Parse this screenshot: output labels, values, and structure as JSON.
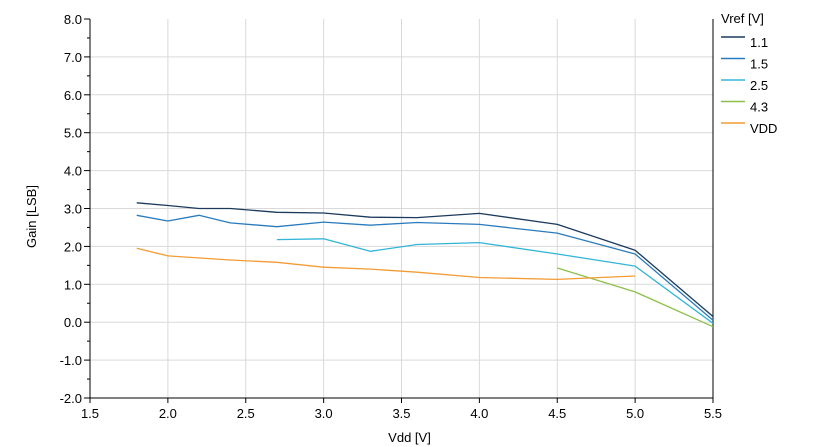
{
  "chart_data": {
    "type": "line",
    "xlabel": "Vdd [V]",
    "ylabel": "Gain [LSB]",
    "xlim": [
      1.5,
      5.5
    ],
    "ylim": [
      -2.0,
      8.0
    ],
    "xticks": [
      "1.5",
      "2.0",
      "2.5",
      "3.0",
      "3.5",
      "4.0",
      "4.5",
      "5.0",
      "5.5"
    ],
    "yticks": [
      "-2.0",
      "-1.0",
      "0.0",
      "1.0",
      "2.0",
      "3.0",
      "4.0",
      "5.0",
      "6.0",
      "7.0",
      "8.0"
    ],
    "grid": true,
    "legend_title": "Vref [V]",
    "legend_position": "right",
    "series": [
      {
        "name": "1.1",
        "color": "#1b3a5c",
        "points": [
          [
            1.8,
            3.15
          ],
          [
            2.0,
            3.08
          ],
          [
            2.2,
            3.0
          ],
          [
            2.4,
            3.0
          ],
          [
            2.7,
            2.9
          ],
          [
            3.0,
            2.88
          ],
          [
            3.3,
            2.77
          ],
          [
            3.6,
            2.76
          ],
          [
            4.0,
            2.87
          ],
          [
            4.5,
            2.58
          ],
          [
            5.0,
            1.9
          ],
          [
            5.5,
            0.15
          ]
        ]
      },
      {
        "name": "1.5",
        "color": "#2a7bbd",
        "points": [
          [
            1.8,
            2.82
          ],
          [
            2.0,
            2.67
          ],
          [
            2.2,
            2.82
          ],
          [
            2.4,
            2.62
          ],
          [
            2.7,
            2.52
          ],
          [
            3.0,
            2.64
          ],
          [
            3.3,
            2.56
          ],
          [
            3.6,
            2.63
          ],
          [
            4.0,
            2.58
          ],
          [
            4.5,
            2.35
          ],
          [
            5.0,
            1.8
          ],
          [
            5.5,
            0.05
          ]
        ]
      },
      {
        "name": "2.5",
        "color": "#33b5d8",
        "points": [
          [
            2.7,
            2.18
          ],
          [
            3.0,
            2.2
          ],
          [
            3.3,
            1.87
          ],
          [
            3.6,
            2.05
          ],
          [
            4.0,
            2.1
          ],
          [
            4.5,
            1.8
          ],
          [
            5.0,
            1.48
          ],
          [
            5.5,
            -0.03
          ]
        ]
      },
      {
        "name": "4.3",
        "color": "#8cc04b",
        "points": [
          [
            4.5,
            1.43
          ],
          [
            5.0,
            0.8
          ],
          [
            5.5,
            -0.12
          ]
        ]
      },
      {
        "name": "VDD",
        "color": "#f39c35",
        "points": [
          [
            1.8,
            1.95
          ],
          [
            2.0,
            1.75
          ],
          [
            2.4,
            1.64
          ],
          [
            2.7,
            1.58
          ],
          [
            3.0,
            1.45
          ],
          [
            3.3,
            1.4
          ],
          [
            3.6,
            1.32
          ],
          [
            4.0,
            1.18
          ],
          [
            4.5,
            1.13
          ],
          [
            5.0,
            1.22
          ]
        ]
      }
    ]
  }
}
